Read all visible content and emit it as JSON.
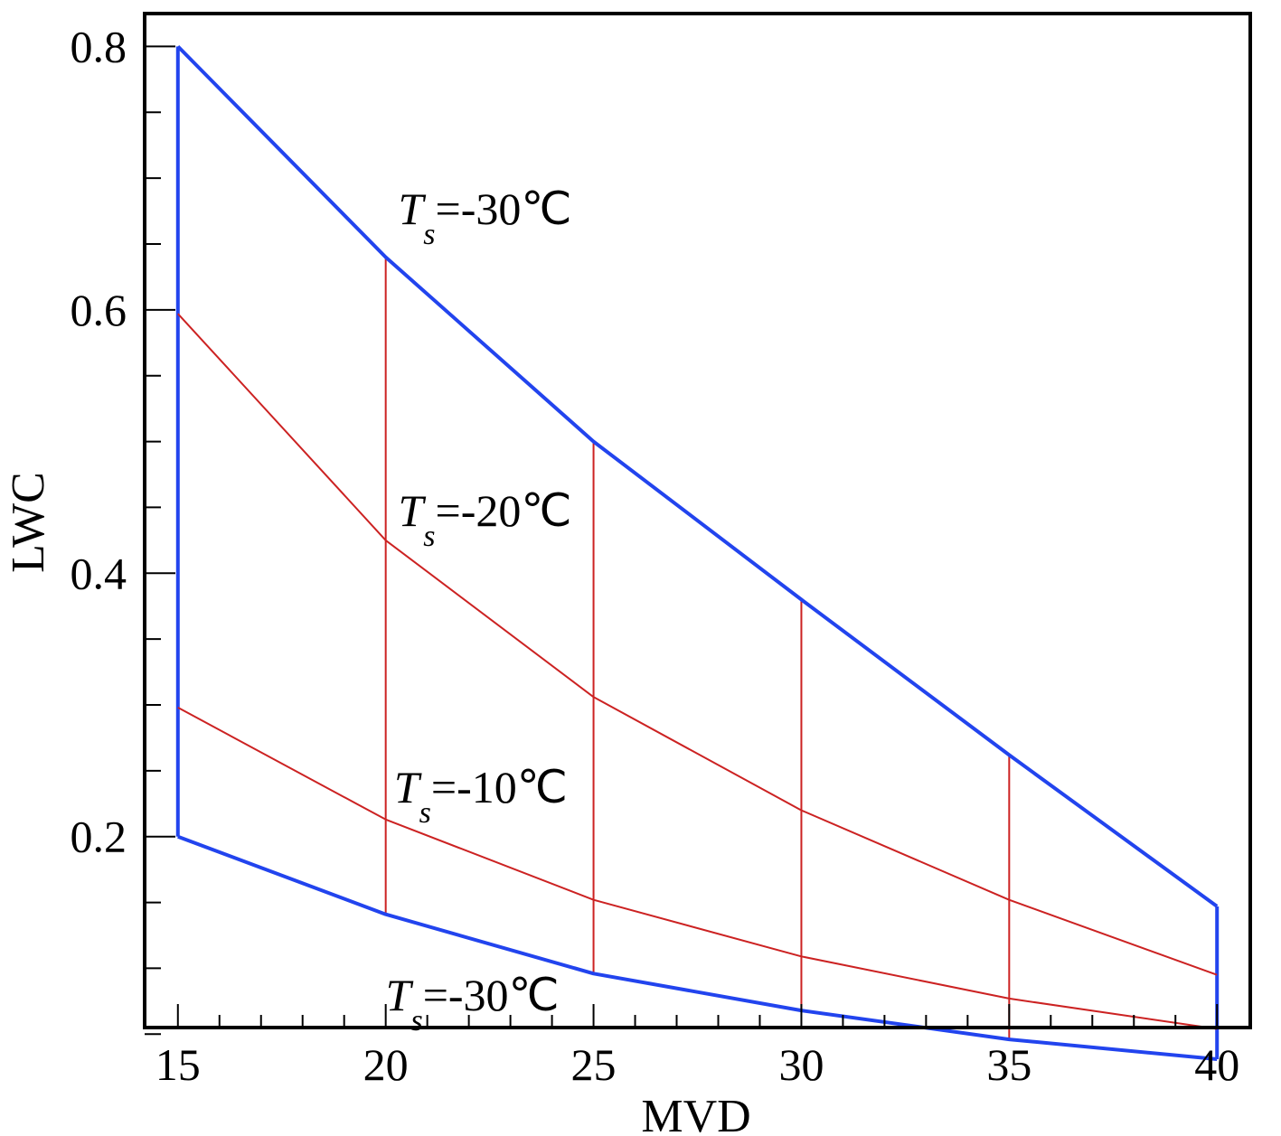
{
  "chart_data": {
    "type": "line",
    "title": "",
    "xlabel": "MVD",
    "ylabel": "LWC",
    "xlim": [
      14.2,
      40.8
    ],
    "ylim": [
      0.055,
      0.825
    ],
    "xticks": [
      15,
      20,
      25,
      30,
      35,
      40
    ],
    "xtick_labels": [
      "15",
      "20",
      "25",
      "30",
      "35",
      "40"
    ],
    "yticks": [
      0.2,
      0.4,
      0.6,
      0.8
    ],
    "ytick_labels": [
      "0.2",
      "0.4",
      "0.6",
      "0.8"
    ],
    "grid": false,
    "colors": {
      "envelope": "#2244ee",
      "isotherm": "#cc2222",
      "axis": "#000000"
    },
    "series": [
      {
        "name": "T_s=-30℃ (upper)",
        "role": "envelope",
        "x": [
          15,
          20,
          25,
          30,
          35,
          40
        ],
        "y": [
          0.8,
          0.64,
          0.5,
          0.38,
          0.262,
          0.147
        ]
      },
      {
        "name": "T_s=-20℃",
        "role": "isotherm",
        "x": [
          15,
          20,
          25,
          30,
          35,
          40
        ],
        "y": [
          0.597,
          0.425,
          0.306,
          0.22,
          0.152,
          0.095
        ]
      },
      {
        "name": "T_s=-10℃",
        "role": "isotherm",
        "x": [
          15,
          20,
          25,
          30,
          35,
          40
        ],
        "y": [
          0.298,
          0.213,
          0.152,
          0.109,
          0.077,
          0.054
        ]
      },
      {
        "name": "T_s=-30℃ (lower)",
        "role": "envelope",
        "x": [
          15,
          20,
          25,
          30,
          35,
          40
        ],
        "y": [
          0.2,
          0.141,
          0.096,
          0.068,
          0.046,
          0.031
        ]
      }
    ],
    "vertical_lines": [
      {
        "x": 15,
        "y_low": 0.2,
        "y_high": 0.8,
        "role": "envelope"
      },
      {
        "x": 20,
        "y_low": 0.141,
        "y_high": 0.64,
        "role": "isotherm"
      },
      {
        "x": 25,
        "y_low": 0.096,
        "y_high": 0.5,
        "role": "isotherm"
      },
      {
        "x": 30,
        "y_low": 0.068,
        "y_high": 0.38,
        "role": "isotherm"
      },
      {
        "x": 35,
        "y_low": 0.046,
        "y_high": 0.262,
        "role": "isotherm"
      },
      {
        "x": 40,
        "y_low": 0.031,
        "y_high": 0.147,
        "role": "envelope"
      }
    ],
    "annotations": [
      {
        "base": "T",
        "sub": "s",
        "text": "=-30℃",
        "x": 20.3,
        "y": 0.665
      },
      {
        "base": "T",
        "sub": "s",
        "text": "=-20℃",
        "x": 20.3,
        "y": 0.436
      },
      {
        "base": "T",
        "sub": "s",
        "text": "=-10℃",
        "x": 20.2,
        "y": 0.226
      },
      {
        "base": "T",
        "sub": "s",
        "text": "=-30℃",
        "x": 20.0,
        "y": 0.068
      }
    ]
  }
}
